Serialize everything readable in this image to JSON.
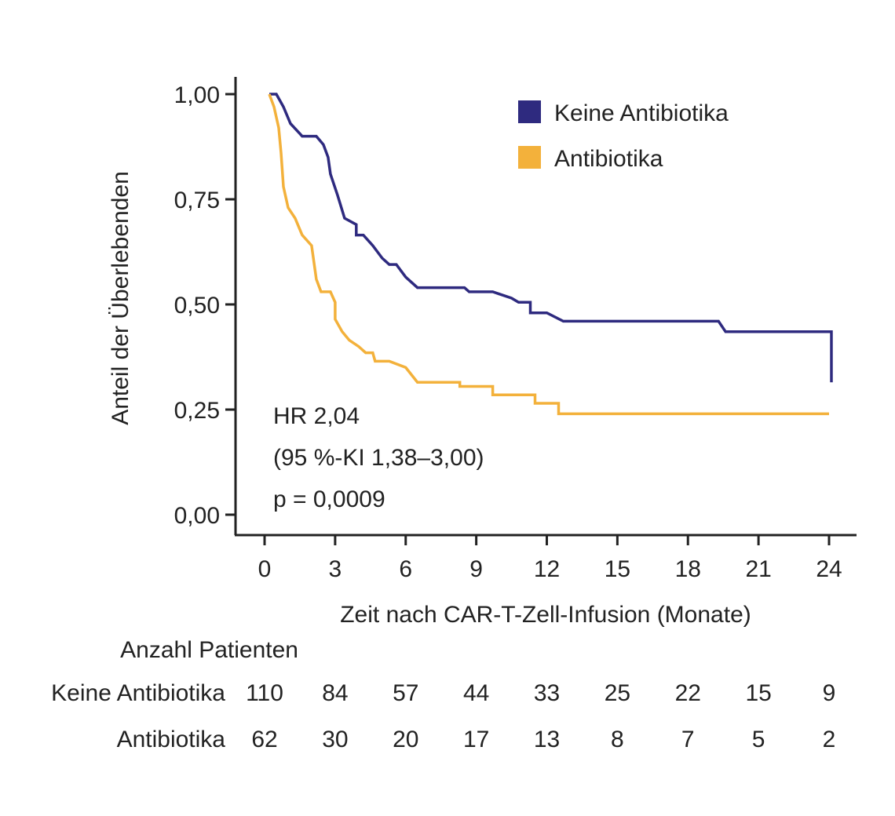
{
  "chart_data": {
    "type": "line",
    "xlabel": "Zeit nach CAR-T-Zell-Infusion (Monate)",
    "ylabel": "Anteil der Überlebenden",
    "xlim": [
      0,
      24
    ],
    "ylim": [
      0,
      1
    ],
    "x_ticks": [
      0,
      3,
      6,
      9,
      12,
      15,
      18,
      21,
      24
    ],
    "x_tick_labels": [
      "0",
      "3",
      "6",
      "9",
      "12",
      "15",
      "18",
      "21",
      "24"
    ],
    "y_ticks": [
      0,
      0.25,
      0.5,
      0.75,
      1
    ],
    "y_tick_labels": [
      "0,00",
      "0,25",
      "0,50",
      "0,75",
      "1,00"
    ],
    "grid": false,
    "legend_position": "top-right",
    "annotation": {
      "hr": "HR 2,04",
      "ci": "(95 %-KI 1,38–3,00)",
      "p": "p = 0,0009"
    },
    "series": [
      {
        "name": "Keine Antibiotika",
        "color": "#2e2a7f",
        "points": [
          [
            0.2,
            1.0
          ],
          [
            0.5,
            1.0
          ],
          [
            0.8,
            0.97
          ],
          [
            1.1,
            0.93
          ],
          [
            1.6,
            0.9
          ],
          [
            2.2,
            0.9
          ],
          [
            2.5,
            0.88
          ],
          [
            2.7,
            0.85
          ],
          [
            2.8,
            0.81
          ],
          [
            3.1,
            0.76
          ],
          [
            3.4,
            0.705
          ],
          [
            3.9,
            0.69
          ],
          [
            3.9,
            0.665
          ],
          [
            4.2,
            0.665
          ],
          [
            4.6,
            0.64
          ],
          [
            5.0,
            0.61
          ],
          [
            5.3,
            0.595
          ],
          [
            5.6,
            0.595
          ],
          [
            6.0,
            0.565
          ],
          [
            6.5,
            0.54
          ],
          [
            8.5,
            0.54
          ],
          [
            8.7,
            0.53
          ],
          [
            9.7,
            0.53
          ],
          [
            10.5,
            0.515
          ],
          [
            10.8,
            0.505
          ],
          [
            11.3,
            0.505
          ],
          [
            11.3,
            0.48
          ],
          [
            12.0,
            0.48
          ],
          [
            12.7,
            0.46
          ],
          [
            19.3,
            0.46
          ],
          [
            19.6,
            0.435
          ],
          [
            24.1,
            0.435
          ],
          [
            24.1,
            0.315
          ]
        ]
      },
      {
        "name": "Antibiotika",
        "color": "#f3b13b",
        "points": [
          [
            0.2,
            1.0
          ],
          [
            0.4,
            0.97
          ],
          [
            0.6,
            0.92
          ],
          [
            0.7,
            0.86
          ],
          [
            0.8,
            0.78
          ],
          [
            1.0,
            0.73
          ],
          [
            1.3,
            0.705
          ],
          [
            1.6,
            0.665
          ],
          [
            2.0,
            0.64
          ],
          [
            2.2,
            0.56
          ],
          [
            2.4,
            0.53
          ],
          [
            2.8,
            0.53
          ],
          [
            3.0,
            0.505
          ],
          [
            3.0,
            0.465
          ],
          [
            3.3,
            0.435
          ],
          [
            3.6,
            0.415
          ],
          [
            4.0,
            0.4
          ],
          [
            4.3,
            0.385
          ],
          [
            4.6,
            0.385
          ],
          [
            4.7,
            0.365
          ],
          [
            5.3,
            0.365
          ],
          [
            6.0,
            0.35
          ],
          [
            6.5,
            0.315
          ],
          [
            8.3,
            0.315
          ],
          [
            8.3,
            0.305
          ],
          [
            9.7,
            0.305
          ],
          [
            9.7,
            0.285
          ],
          [
            11.5,
            0.285
          ],
          [
            11.5,
            0.265
          ],
          [
            12.5,
            0.265
          ],
          [
            12.5,
            0.24
          ],
          [
            24.0,
            0.24
          ]
        ]
      }
    ],
    "risk_table": {
      "title": "Anzahl Patienten",
      "rows": [
        {
          "label": "Keine Antibiotika",
          "values": [
            "110",
            "84",
            "57",
            "44",
            "33",
            "25",
            "22",
            "15",
            "9"
          ]
        },
        {
          "label": "Antibiotika",
          "values": [
            "62",
            "30",
            "20",
            "17",
            "13",
            "8",
            "7",
            "5",
            "2"
          ]
        }
      ]
    }
  }
}
